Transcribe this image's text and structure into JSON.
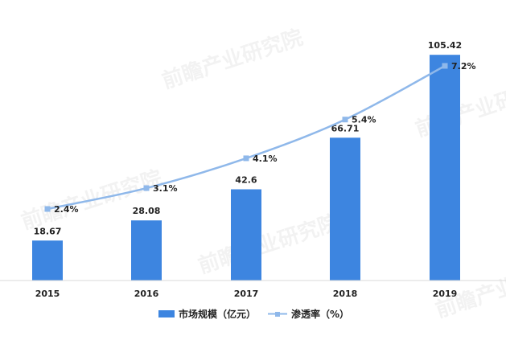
{
  "chart_data": {
    "type": "bar",
    "categories": [
      "2015",
      "2016",
      "2017",
      "2018",
      "2019"
    ],
    "series": [
      {
        "name": "市场规模（亿元）",
        "kind": "bar",
        "values": [
          18.67,
          28.08,
          42.6,
          66.71,
          105.42
        ],
        "labels": [
          "18.67",
          "28.08",
          "42.6",
          "66.71",
          "105.42"
        ],
        "color": "#3d85e0"
      },
      {
        "name": "渗透率（%）",
        "kind": "line",
        "values": [
          2.4,
          3.1,
          4.1,
          5.4,
          7.2
        ],
        "labels": [
          "2.4%",
          "3.1%",
          "4.1%",
          "5.4%",
          "7.2%"
        ],
        "color": "#8fb8ea"
      }
    ],
    "ylim": [
      0,
      110
    ],
    "y2lim": [
      0,
      7.9
    ],
    "grid": false,
    "legend_position": "bottom"
  },
  "watermark": "前瞻产业研究院"
}
